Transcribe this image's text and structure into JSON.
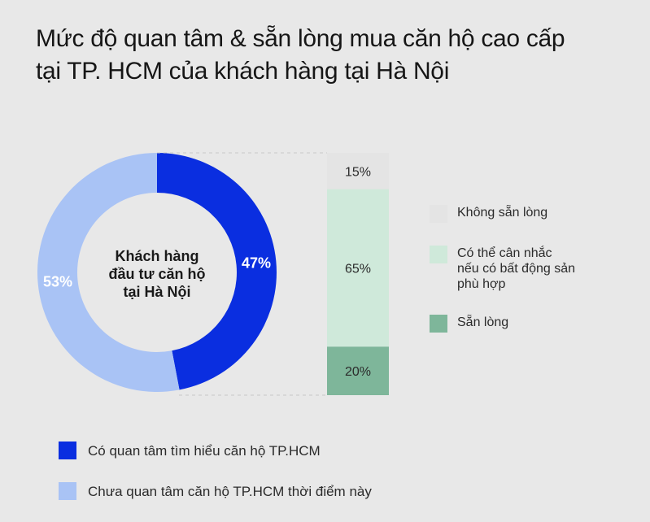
{
  "title_lines": [
    "Mức độ quan tâm & sẵn lòng mua căn hộ cao cấp",
    "tại TP. HCM của khách hàng tại Hà Nội"
  ],
  "chart_data": [
    {
      "type": "pie",
      "variant": "donut",
      "center_label_lines": [
        "Khách hàng",
        "đầu tư căn hộ",
        "tại Hà Nội"
      ],
      "slices": [
        {
          "label": "Có quan tâm tìm hiểu căn hộ TP.HCM",
          "value": 47,
          "value_label": "47%",
          "color": "#0a2ee0",
          "text_color": "#ffffff"
        },
        {
          "label": "Chưa quan tâm căn hộ TP.HCM thời điểm này",
          "value": 53,
          "value_label": "53%",
          "color": "#a9c3f5",
          "text_color": "#ffffff"
        }
      ],
      "legend_placement": "bottom-left"
    },
    {
      "type": "bar",
      "variant": "stacked-100",
      "segments": [
        {
          "label": "Không sẵn lòng",
          "value": 15,
          "value_label": "15%",
          "color": "#e4e4e4"
        },
        {
          "label": "Có thể cân nhắc nếu có bất động sản phù hợp",
          "value": 65,
          "value_label": "65%",
          "color": "#cfe9da"
        },
        {
          "label": "Sẵn lòng",
          "value": 20,
          "value_label": "20%",
          "color": "#7eb69a"
        }
      ],
      "legend_placement": "right"
    }
  ],
  "legend_right": [
    {
      "lines": [
        "Không sẵn lòng"
      ],
      "color": "#e4e4e4"
    },
    {
      "lines": [
        "Có thể cân nhắc",
        "nếu có bất động sản",
        "phù hợp"
      ],
      "color": "#cfe9da"
    },
    {
      "lines": [
        "Sẵn lòng"
      ],
      "color": "#7eb69a"
    }
  ],
  "legend_bottom": [
    {
      "label": "Có quan tâm tìm hiểu căn hộ TP.HCM",
      "color": "#0a2ee0"
    },
    {
      "label": "Chưa quan tâm căn hộ TP.HCM thời điểm này",
      "color": "#a9c3f5"
    }
  ]
}
